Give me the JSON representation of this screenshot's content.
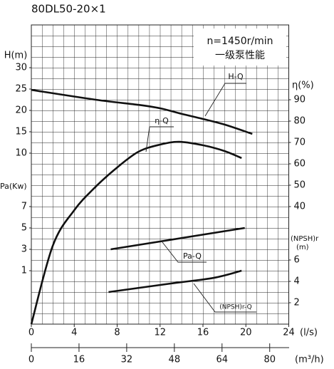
{
  "chart_data": {
    "type": "line",
    "title": "80DL50-20×1",
    "annotation_lines": [
      "n=1450r/min",
      "一级泵性能"
    ],
    "xlabel": "(l/s)",
    "xlim": [
      0,
      24
    ],
    "xticks": [
      0,
      4,
      8,
      12,
      16,
      20,
      24
    ],
    "x2label": "(m³/h)",
    "x2lim": [
      0,
      86.4
    ],
    "x2ticks": [
      0,
      16,
      32,
      48,
      64,
      80
    ],
    "axes": [
      {
        "label": "H(m)",
        "side": "left",
        "ylim": [
          -30,
          40
        ],
        "yticks": [
          10,
          15,
          20,
          25,
          30
        ]
      },
      {
        "label": "Pa(Kw)",
        "side": "left",
        "ylim": [
          -4,
          24
        ],
        "yticks": [
          1,
          3,
          5,
          7
        ]
      },
      {
        "label": "η(%)",
        "side": "right",
        "ylim": [
          -15,
          125
        ],
        "yticks": [
          40,
          50,
          60,
          70,
          80,
          90
        ]
      },
      {
        "label": "(NPSH)r\n(m)",
        "side": "right",
        "ylim": [
          0,
          28
        ],
        "yticks": [
          2,
          4,
          6
        ]
      }
    ],
    "grid": true,
    "color": "#111111",
    "series": [
      {
        "name": "H-Q",
        "axis": 0,
        "x": [
          0,
          6,
          10,
          12,
          14,
          16,
          18,
          20.6
        ],
        "values": [
          24.8,
          22.5,
          21.3,
          20.5,
          19.2,
          18,
          16.7,
          14.5
        ]
      },
      {
        "name": "η-Q",
        "axis": 2,
        "x": [
          0,
          2,
          4,
          6,
          8,
          10,
          12,
          13.8,
          16,
          18,
          19.6
        ],
        "values": [
          -15,
          21.7,
          38.3,
          49.3,
          58.3,
          65.7,
          69,
          70.3,
          68.7,
          66,
          62.7
        ]
      },
      {
        "name": "Pa-Q",
        "axis": 1,
        "x": [
          7.4,
          19.9
        ],
        "values": [
          3,
          5
        ]
      },
      {
        "name": "(NPSH)r-Q",
        "axis": 3,
        "x": [
          7.2,
          13,
          17,
          19.6
        ],
        "values": [
          3,
          3.8,
          4.33,
          5
        ]
      }
    ]
  }
}
